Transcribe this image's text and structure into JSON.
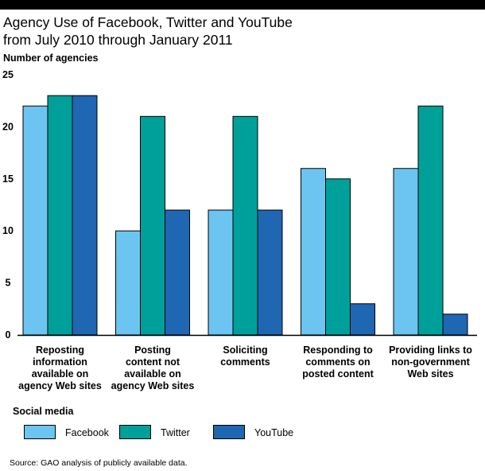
{
  "chart_data": {
    "type": "bar",
    "title_line1": "Agency Use of Facebook, Twitter and YouTube",
    "title_line2": "from July 2010 through January 2011",
    "ylabel": "Number of agencies",
    "xlabel": "",
    "ylim": [
      0,
      25
    ],
    "yticks": [
      "0",
      "5",
      "10",
      "15",
      "20",
      "25"
    ],
    "categories": [
      "Reposting information available on agency Web sites",
      "Posting content not available on agency Web sites",
      "Soliciting comments",
      "Responding to comments on posted content",
      "Providing links to non-government Web sites"
    ],
    "category_lines": [
      [
        "Reposting",
        "information",
        "available on",
        "agency Web sites"
      ],
      [
        "Posting",
        "content not",
        "available on",
        "agency Web sites"
      ],
      [
        "Soliciting",
        "comments"
      ],
      [
        "Responding to",
        "comments on",
        "posted content"
      ],
      [
        "Providing links to",
        "non-government",
        "Web sites"
      ]
    ],
    "series": [
      {
        "name": "Facebook",
        "color": "#6cc5f0",
        "values": [
          22,
          10,
          12,
          16,
          16
        ]
      },
      {
        "name": "Twitter",
        "color": "#00a09a",
        "values": [
          23,
          21,
          21,
          15,
          22
        ]
      },
      {
        "name": "YouTube",
        "color": "#1f66b3",
        "values": [
          23,
          12,
          12,
          3,
          2
        ]
      }
    ],
    "grid": false,
    "legend_title": "Social media",
    "legend_position": "bottom-left",
    "source": "Source: GAO analysis of publicly available data."
  }
}
